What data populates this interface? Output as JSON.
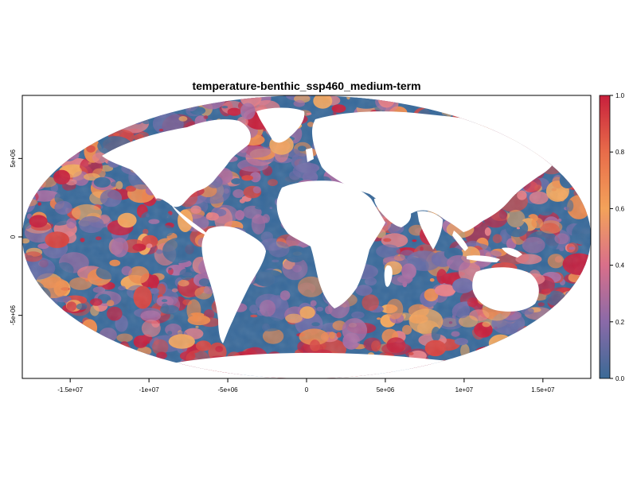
{
  "title": "temperature-benthic_ssp460_medium-term",
  "x_axis": {
    "ticks": [
      {
        "value": -15000000,
        "label": "-1.5e+07"
      },
      {
        "value": -10000000,
        "label": "-1e+07"
      },
      {
        "value": -5000000,
        "label": "-5e+06"
      },
      {
        "value": 0,
        "label": "0"
      },
      {
        "value": 5000000,
        "label": "5e+06"
      },
      {
        "value": 10000000,
        "label": "1e+07"
      },
      {
        "value": 15000000,
        "label": "1.5e+07"
      }
    ],
    "range": [
      -18040095,
      18040095
    ]
  },
  "y_axis": {
    "ticks": [
      {
        "value": 5000000,
        "label": "5e+06"
      },
      {
        "value": 0,
        "label": "0"
      },
      {
        "value": -5000000,
        "label": "-5e+06"
      }
    ],
    "range": [
      -9020047,
      9020047
    ]
  },
  "legend": {
    "min": 0.0,
    "max": 1.0,
    "ticks": [
      {
        "value": 1.0,
        "label": "1.0"
      },
      {
        "value": 0.8,
        "label": "0.8"
      },
      {
        "value": 0.6,
        "label": "0.6"
      },
      {
        "value": 0.4,
        "label": "0.4"
      },
      {
        "value": 0.2,
        "label": "0.2"
      },
      {
        "value": 0.0,
        "label": "0.0"
      }
    ],
    "colors": [
      "#3b6a96",
      "#8a6aa8",
      "#d96f8a",
      "#f3a25a",
      "#e86c4a",
      "#c8203c"
    ]
  },
  "map": {
    "projection": "Mollweide",
    "value_colors": [
      "#36689a",
      "#6d6aa8",
      "#a76aa2",
      "#e77d86",
      "#f6a85c",
      "#ef8a4c",
      "#d8433f",
      "#c71d3b"
    ],
    "land_color": "#ffffff"
  }
}
